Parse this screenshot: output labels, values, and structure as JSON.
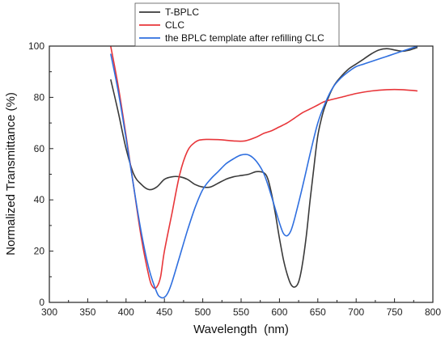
{
  "chart_data": {
    "type": "line",
    "title": "",
    "xlabel": "Wavelength  (nm)",
    "ylabel": "Normalized Transmittance (%)",
    "xlim": [
      300,
      800
    ],
    "ylim": [
      0,
      100
    ],
    "xticks": [
      300,
      350,
      400,
      450,
      500,
      550,
      600,
      650,
      700,
      750,
      800
    ],
    "yticks": [
      0,
      20,
      40,
      60,
      80,
      100
    ],
    "legend_position": "top-center, above plot",
    "series": [
      {
        "name": "T-BPLC",
        "color": "#3a3a3a",
        "points": [
          [
            380,
            87
          ],
          [
            390,
            74
          ],
          [
            400,
            60
          ],
          [
            410,
            50
          ],
          [
            420,
            46
          ],
          [
            430,
            44
          ],
          [
            440,
            45
          ],
          [
            450,
            48
          ],
          [
            460,
            49
          ],
          [
            470,
            49
          ],
          [
            480,
            48
          ],
          [
            490,
            46
          ],
          [
            500,
            45
          ],
          [
            510,
            45
          ],
          [
            520,
            46.5
          ],
          [
            530,
            48
          ],
          [
            540,
            49
          ],
          [
            550,
            49.5
          ],
          [
            560,
            50
          ],
          [
            570,
            51
          ],
          [
            580,
            50.5
          ],
          [
            585,
            48
          ],
          [
            590,
            42
          ],
          [
            595,
            34
          ],
          [
            600,
            25
          ],
          [
            605,
            17
          ],
          [
            610,
            11
          ],
          [
            615,
            7
          ],
          [
            620,
            6
          ],
          [
            625,
            8
          ],
          [
            630,
            15
          ],
          [
            635,
            26
          ],
          [
            640,
            40
          ],
          [
            645,
            53
          ],
          [
            650,
            65
          ],
          [
            655,
            72
          ],
          [
            660,
            77
          ],
          [
            670,
            84
          ],
          [
            680,
            88
          ],
          [
            690,
            91
          ],
          [
            700,
            93
          ],
          [
            710,
            95
          ],
          [
            720,
            97
          ],
          [
            730,
            98.5
          ],
          [
            740,
            99
          ],
          [
            750,
            98.5
          ],
          [
            760,
            98
          ],
          [
            770,
            98.5
          ],
          [
            780,
            99.5
          ]
        ]
      },
      {
        "name": "CLC",
        "color": "#e8363a",
        "points": [
          [
            380,
            100
          ],
          [
            390,
            84
          ],
          [
            400,
            65
          ],
          [
            410,
            45
          ],
          [
            420,
            25
          ],
          [
            430,
            10
          ],
          [
            435,
            6
          ],
          [
            440,
            6
          ],
          [
            445,
            10
          ],
          [
            450,
            20
          ],
          [
            460,
            35
          ],
          [
            470,
            50
          ],
          [
            480,
            59
          ],
          [
            490,
            62.5
          ],
          [
            500,
            63.5
          ],
          [
            520,
            63.5
          ],
          [
            540,
            63
          ],
          [
            555,
            63
          ],
          [
            570,
            64.5
          ],
          [
            580,
            66
          ],
          [
            590,
            67
          ],
          [
            600,
            68.5
          ],
          [
            610,
            70
          ],
          [
            620,
            72
          ],
          [
            630,
            74
          ],
          [
            640,
            75.5
          ],
          [
            650,
            77
          ],
          [
            660,
            78.5
          ],
          [
            680,
            80
          ],
          [
            700,
            81.5
          ],
          [
            720,
            82.5
          ],
          [
            740,
            83
          ],
          [
            760,
            83
          ],
          [
            780,
            82.5
          ]
        ]
      },
      {
        "name": "the BPLC template after refilling CLC",
        "color": "#2f6fdf",
        "points": [
          [
            380,
            97
          ],
          [
            390,
            82
          ],
          [
            400,
            64
          ],
          [
            410,
            45
          ],
          [
            420,
            27
          ],
          [
            430,
            13
          ],
          [
            440,
            4
          ],
          [
            445,
            2
          ],
          [
            450,
            2
          ],
          [
            455,
            4
          ],
          [
            460,
            8
          ],
          [
            470,
            18
          ],
          [
            480,
            28
          ],
          [
            490,
            37
          ],
          [
            500,
            44
          ],
          [
            510,
            48
          ],
          [
            520,
            51
          ],
          [
            530,
            54
          ],
          [
            540,
            56
          ],
          [
            550,
            57.5
          ],
          [
            560,
            57.5
          ],
          [
            570,
            55
          ],
          [
            580,
            50
          ],
          [
            590,
            41
          ],
          [
            600,
            31
          ],
          [
            605,
            27
          ],
          [
            610,
            26
          ],
          [
            615,
            28
          ],
          [
            620,
            33
          ],
          [
            630,
            45
          ],
          [
            640,
            58
          ],
          [
            650,
            70
          ],
          [
            660,
            78
          ],
          [
            670,
            84
          ],
          [
            680,
            87.5
          ],
          [
            690,
            90
          ],
          [
            700,
            92
          ],
          [
            710,
            93
          ],
          [
            720,
            94
          ],
          [
            740,
            96
          ],
          [
            760,
            98
          ],
          [
            780,
            100
          ]
        ]
      }
    ]
  }
}
